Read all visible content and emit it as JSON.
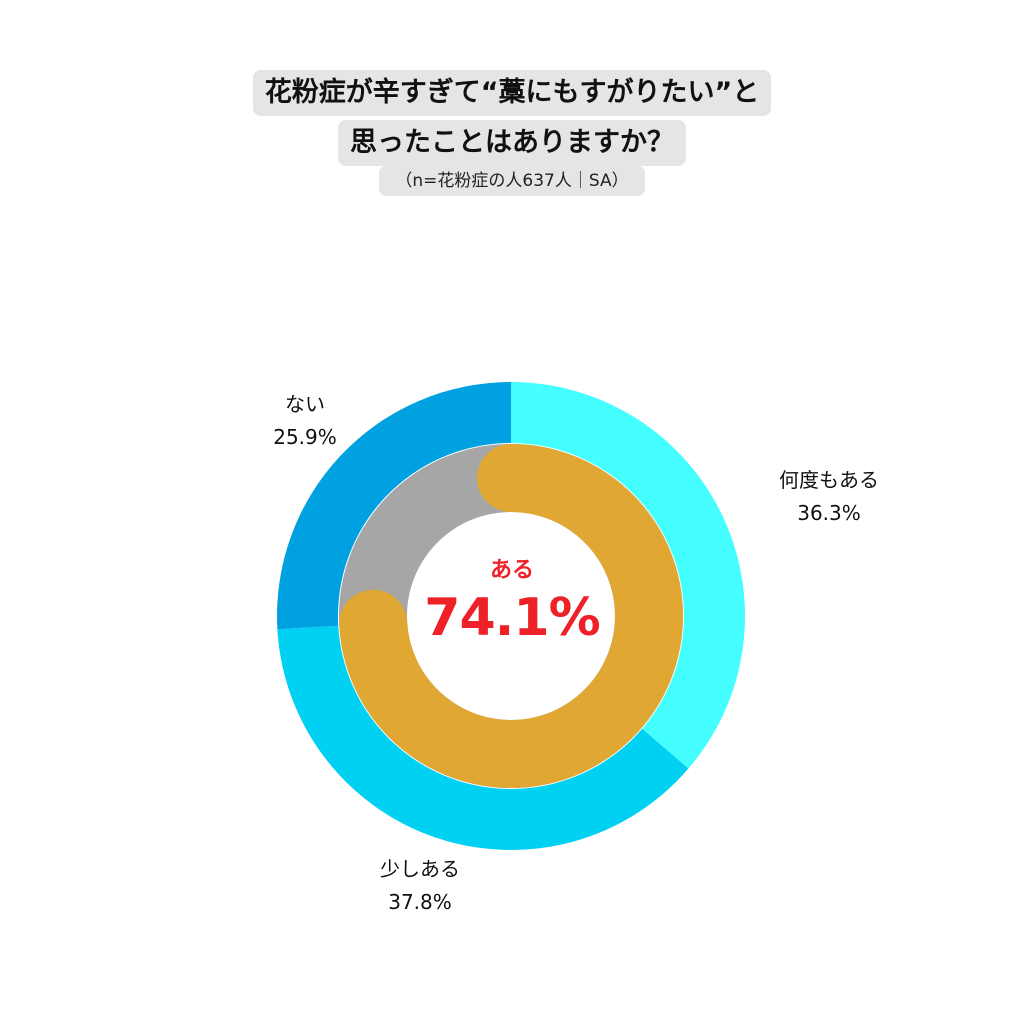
{
  "chart_data": {
    "type": "pie",
    "title_lines": [
      "花粉症が辛すぎて“藁にもすがりたい”と",
      "思ったことはありますか？"
    ],
    "subtitle": "（n=花粉症の人637人｜SA）",
    "outer_ring": {
      "slices": [
        {
          "label": "何度もある",
          "value_text": "36.3%",
          "value": 36.3,
          "color": "#45feff"
        },
        {
          "label": "少しある",
          "value_text": "37.8%",
          "value": 37.8,
          "color": "#00d0f2"
        },
        {
          "label": "ない",
          "value_text": "25.9%",
          "value": 25.9,
          "color": "#00a1e0"
        }
      ]
    },
    "inner_ring": {
      "background_color": "#a6a6a6",
      "progress_value": 74.1,
      "progress_color": "#e0a733",
      "center_label": "ある",
      "center_value_text": "74.1%",
      "center_color": "#ee2028"
    }
  }
}
